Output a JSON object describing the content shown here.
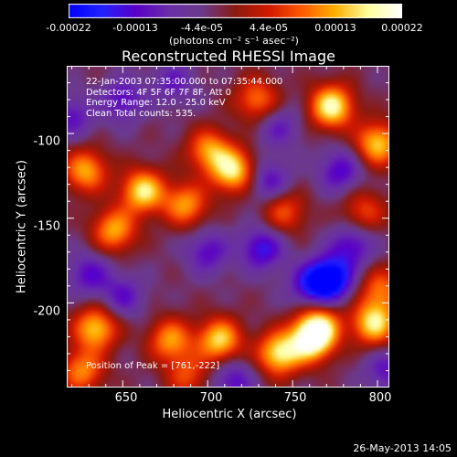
{
  "colorbar": {
    "ticks": [
      "-0.00022",
      "-0.00013",
      "-4.4e-05",
      "4.4e-05",
      "0.00013",
      "0.00022"
    ],
    "unit_label": "(photons cm⁻² s⁻¹ asec⁻²)",
    "range": [
      -0.00022,
      0.00022
    ],
    "colors": [
      "#0000ff",
      "#2222ff",
      "#5a00c8",
      "#6a2ea8",
      "#6b3a8a",
      "#8a1a10",
      "#d21800",
      "#ff5a00",
      "#ffb000",
      "#ffffa0",
      "#ffffff"
    ]
  },
  "chart_data": {
    "type": "heatmap",
    "title": "Reconstructed RHESSI Image",
    "xlabel": "Heliocentric X (arcsec)",
    "ylabel": "Heliocentric Y (arcsec)",
    "xlim": [
      617,
      807
    ],
    "ylim": [
      -250,
      -60
    ],
    "x_ticks": [
      650,
      700,
      750,
      800
    ],
    "y_ticks": [
      -100,
      -150,
      -200
    ],
    "colorbar_range": [
      -0.00022,
      0.00022
    ],
    "annotations": [
      "22-Jan-2003 07:35:00.000 to 07:35:44.000",
      "Detectors: 4F 5F 6F 7F 8F, Att 0",
      "Energy Range: 12.0 - 25.0 keV",
      "Clean     Total counts: 535."
    ],
    "peak_label": "Position of Peak = [761,-222]",
    "sources": [
      {
        "x": 773,
        "y": -84,
        "v": 0.00022
      },
      {
        "x": 800,
        "y": -106,
        "v": 0.00018
      },
      {
        "x": 729,
        "y": -80,
        "v": 0.00013
      },
      {
        "x": 662,
        "y": -134,
        "v": 0.0002
      },
      {
        "x": 628,
        "y": -122,
        "v": 0.00016
      },
      {
        "x": 701,
        "y": -110,
        "v": 0.00015
      },
      {
        "x": 715,
        "y": -122,
        "v": 0.0002
      },
      {
        "x": 687,
        "y": -142,
        "v": 0.00015
      },
      {
        "x": 645,
        "y": -157,
        "v": 0.00016
      },
      {
        "x": 745,
        "y": -146,
        "v": 0.00011
      },
      {
        "x": 792,
        "y": -146,
        "v": 0.0001
      },
      {
        "x": 802,
        "y": -192,
        "v": 0.00012
      },
      {
        "x": 798,
        "y": -212,
        "v": 0.0002
      },
      {
        "x": 766,
        "y": -213,
        "v": 0.00016
      },
      {
        "x": 761,
        "y": -222,
        "v": 0.00022
      },
      {
        "x": 742,
        "y": -230,
        "v": 0.0002
      },
      {
        "x": 707,
        "y": -222,
        "v": 0.00019
      },
      {
        "x": 678,
        "y": -222,
        "v": 0.00015
      },
      {
        "x": 634,
        "y": -215,
        "v": 0.00018
      },
      {
        "x": 626,
        "y": -240,
        "v": 0.00014
      },
      {
        "x": 688,
        "y": -243,
        "v": 0.0001
      },
      {
        "x": 700,
        "y": -170,
        "v": -0.0001
      },
      {
        "x": 760,
        "y": -190,
        "v": -0.00011
      },
      {
        "x": 772,
        "y": -186,
        "v": -0.00022
      },
      {
        "x": 736,
        "y": -128,
        "v": -0.0001
      },
      {
        "x": 732,
        "y": -168,
        "v": -0.00013
      },
      {
        "x": 778,
        "y": -122,
        "v": -0.00011
      },
      {
        "x": 650,
        "y": -196,
        "v": -9e-05
      },
      {
        "x": 630,
        "y": -183,
        "v": -0.0001
      },
      {
        "x": 620,
        "y": -90,
        "v": -9e-05
      },
      {
        "x": 680,
        "y": -70,
        "v": -8e-05
      },
      {
        "x": 650,
        "y": -80,
        "v": -0.0001
      },
      {
        "x": 805,
        "y": -240,
        "v": -9e-05
      },
      {
        "x": 715,
        "y": -246,
        "v": -0.0001
      },
      {
        "x": 742,
        "y": -96,
        "v": -8e-05
      },
      {
        "x": 785,
        "y": -166,
        "v": -0.00011
      }
    ]
  },
  "footer": "26-May-2013 14:05"
}
